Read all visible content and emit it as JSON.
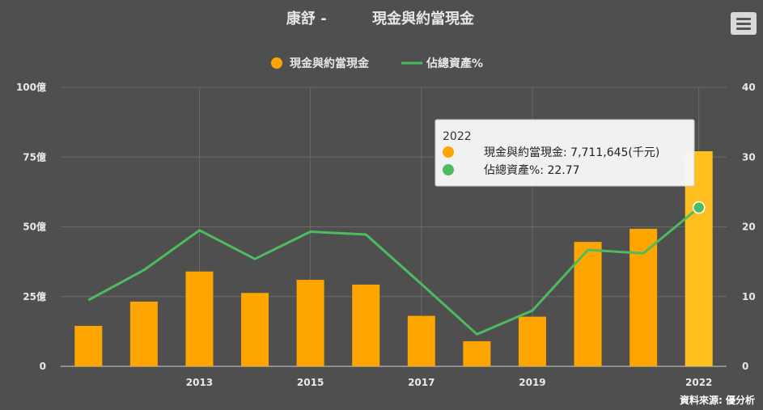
{
  "chart_data": {
    "type": "bar",
    "title": "康舒 -         現金與約當現金",
    "x": [
      2011,
      2012,
      2013,
      2014,
      2015,
      2016,
      2017,
      2018,
      2019,
      2020,
      2021,
      2022
    ],
    "x_tick_labels": [
      "2013",
      "2015",
      "2017",
      "2019",
      "2022"
    ],
    "x_tick_values": [
      2013,
      2015,
      2017,
      2019,
      2022
    ],
    "series": [
      {
        "name": "現金與約當現金",
        "type": "bar",
        "axis": "left",
        "color": "#ffa500",
        "values": [
          14.5,
          23.2,
          34.0,
          26.3,
          31.0,
          29.3,
          18.1,
          9.0,
          17.8,
          44.6,
          49.3,
          77.1
        ]
      },
      {
        "name": "佔總資產%",
        "type": "line",
        "axis": "right",
        "color": "#4dbb5f",
        "values": [
          9.5,
          13.8,
          19.5,
          15.4,
          19.3,
          18.9,
          11.8,
          4.6,
          8.0,
          16.7,
          16.2,
          22.77
        ]
      }
    ],
    "y_left": {
      "ylim": [
        0,
        100
      ],
      "ticks": [
        0,
        25,
        50,
        75,
        100
      ],
      "tick_labels": [
        "0",
        "25億",
        "50億",
        "75億",
        "100億"
      ]
    },
    "y_right": {
      "ylim": [
        0,
        40
      ],
      "ticks": [
        0,
        10,
        20,
        30,
        40
      ],
      "tick_labels": [
        "0",
        "10",
        "20",
        "30",
        "40"
      ]
    },
    "grid": true,
    "legend_position": "top-center",
    "highlighted_index": 11,
    "highlight_bar_color": "#ffbf1f",
    "tooltip": {
      "header": "2022",
      "rows": [
        {
          "label": "現金與約當現金: 7,711,645(千元)",
          "color": "#ffa500"
        },
        {
          "label": "佔總資產%: 22.77",
          "color": "#4dbb5f"
        }
      ]
    },
    "source": "資料來源: 優分析"
  },
  "toolbar": {
    "menu_icon": "hamburger-menu-icon"
  }
}
